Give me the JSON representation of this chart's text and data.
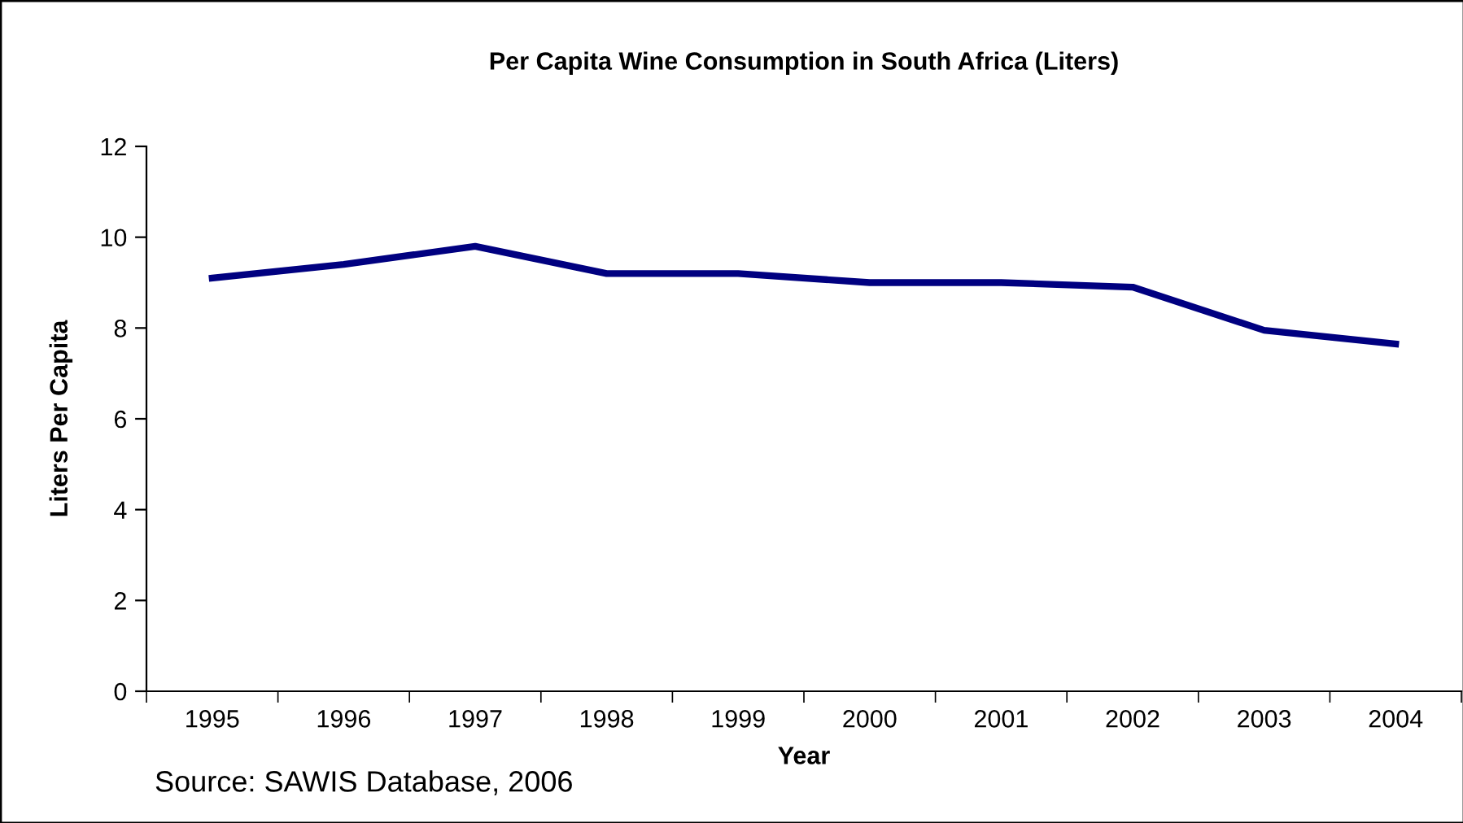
{
  "chart_data": {
    "type": "line",
    "title": "Per Capita Wine Consumption in South Africa (Liters)",
    "xlabel": "Year",
    "ylabel": "Liters Per Capita",
    "categories": [
      "1995",
      "1996",
      "1997",
      "1998",
      "1999",
      "2000",
      "2001",
      "2002",
      "2003",
      "2004"
    ],
    "series": [
      {
        "color": "#000080",
        "values": [
          9.1,
          9.4,
          9.8,
          9.2,
          9.2,
          9.0,
          9.0,
          8.9,
          7.95,
          7.65
        ]
      }
    ],
    "ylim": [
      0,
      12
    ],
    "yticks": [
      0,
      2,
      4,
      6,
      8,
      10,
      12
    ],
    "grid": false,
    "legend": false,
    "marker": "none",
    "line_style": "solid",
    "annotations": [
      "Source: SAWIS Database, 2006"
    ]
  }
}
